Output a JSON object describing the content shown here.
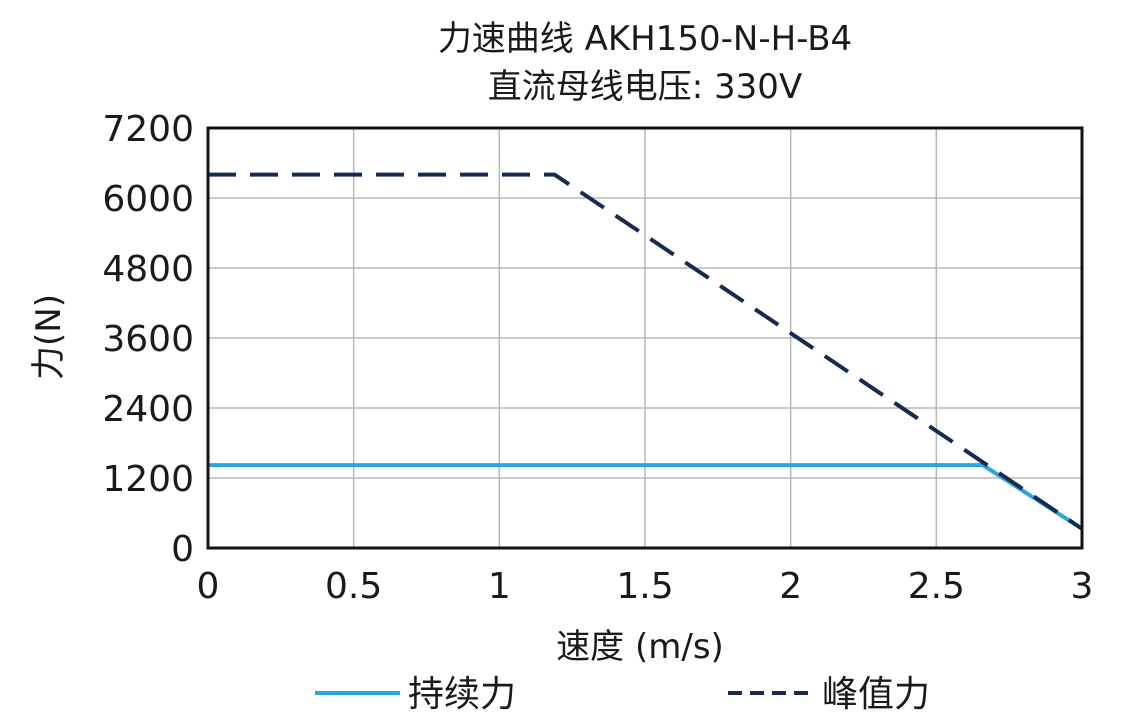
{
  "chart_data": {
    "type": "line",
    "title": "力速曲线 AKH150-N-H-B4",
    "subtitle": "直流母线电压: 330V",
    "xlabel": "速度 (m/s)",
    "ylabel": "力(N)",
    "xlim": [
      0,
      3
    ],
    "ylim": [
      0,
      7200
    ],
    "xticks": [
      0,
      0.5,
      1,
      1.5,
      2,
      2.5,
      3
    ],
    "xtick_labels": [
      "0",
      "0.5",
      "1",
      "1.5",
      "2",
      "2.5",
      "3"
    ],
    "yticks": [
      0,
      1200,
      2400,
      3600,
      4800,
      6000,
      7200
    ],
    "ytick_labels": [
      "0",
      "1200",
      "2400",
      "3600",
      "4800",
      "6000",
      "7200"
    ],
    "grid": true,
    "legend_position": "bottom",
    "series": [
      {
        "name": "持续力",
        "style": "solid",
        "color": "#27a6e0",
        "x": [
          0,
          2.66,
          3.0
        ],
        "y": [
          1420,
          1420,
          330
        ]
      },
      {
        "name": "峰值力",
        "style": "dashed",
        "color": "#172a4f",
        "x": [
          0,
          1.19,
          3.0
        ],
        "y": [
          6400,
          6400,
          330
        ]
      }
    ]
  }
}
